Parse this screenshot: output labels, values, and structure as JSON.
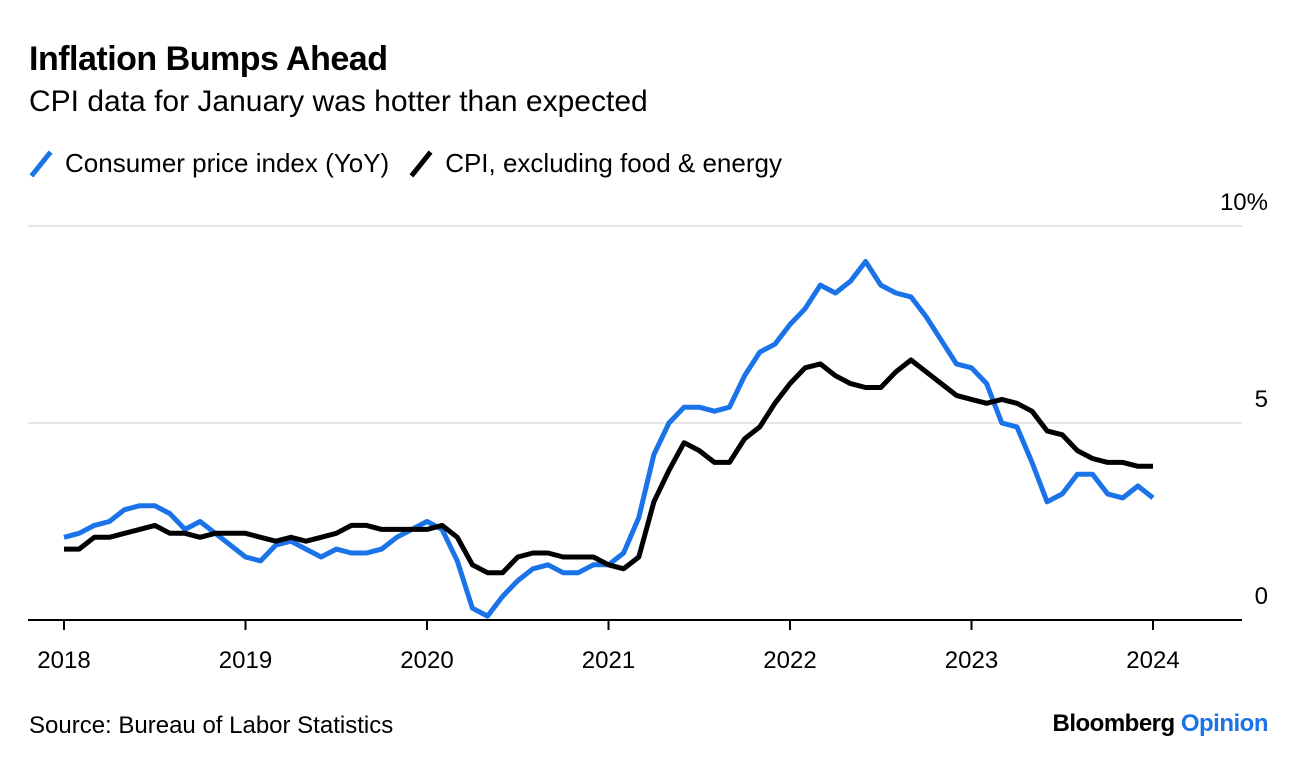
{
  "header": {
    "title": "Inflation Bumps Ahead",
    "subtitle": "CPI data for January was hotter than expected"
  },
  "legend": [
    {
      "label": "Consumer price index (YoY)",
      "color": "#1a73e8"
    },
    {
      "label": "CPI, excluding food & energy",
      "color": "#000000"
    }
  ],
  "footer": {
    "source": "Source: Bureau of Labor Statistics",
    "brand_main": "Bloomberg",
    "brand_sub": "Opinion"
  },
  "chart_data": {
    "type": "line",
    "title": "Inflation Bumps Ahead",
    "xlabel": "",
    "ylabel": "",
    "ylim": [
      0,
      10
    ],
    "yticks": [
      0,
      5,
      10
    ],
    "ytick_labels": [
      "0",
      "5",
      "10%"
    ],
    "xticks": [
      2018,
      2019,
      2020,
      2021,
      2022,
      2023,
      2024
    ],
    "xtick_labels": [
      "2018",
      "2019",
      "2020",
      "2021",
      "2022",
      "2023",
      "2024"
    ],
    "x_start": "2018-01",
    "x_step": "month",
    "grid": true,
    "series": [
      {
        "name": "Consumer price index (YoY)",
        "color": "#1a73e8",
        "values": [
          2.1,
          2.2,
          2.4,
          2.5,
          2.8,
          2.9,
          2.9,
          2.7,
          2.3,
          2.5,
          2.2,
          1.9,
          1.6,
          1.5,
          1.9,
          2.0,
          1.8,
          1.6,
          1.8,
          1.7,
          1.7,
          1.8,
          2.1,
          2.3,
          2.5,
          2.3,
          1.5,
          0.3,
          0.1,
          0.6,
          1.0,
          1.3,
          1.4,
          1.2,
          1.2,
          1.4,
          1.4,
          1.7,
          2.6,
          4.2,
          5.0,
          5.4,
          5.4,
          5.3,
          5.4,
          6.2,
          6.8,
          7.0,
          7.5,
          7.9,
          8.5,
          8.3,
          8.6,
          9.1,
          8.5,
          8.3,
          8.2,
          7.7,
          7.1,
          6.5,
          6.4,
          6.0,
          5.0,
          4.9,
          4.0,
          3.0,
          3.2,
          3.7,
          3.7,
          3.2,
          3.1,
          3.4,
          3.1
        ],
        "last_value": 3.1
      },
      {
        "name": "CPI, excluding food & energy",
        "color": "#000000",
        "values": [
          1.8,
          1.8,
          2.1,
          2.1,
          2.2,
          2.3,
          2.4,
          2.2,
          2.2,
          2.1,
          2.2,
          2.2,
          2.2,
          2.1,
          2.0,
          2.1,
          2.0,
          2.1,
          2.2,
          2.4,
          2.4,
          2.3,
          2.3,
          2.3,
          2.3,
          2.4,
          2.1,
          1.4,
          1.2,
          1.2,
          1.6,
          1.7,
          1.7,
          1.6,
          1.6,
          1.6,
          1.4,
          1.3,
          1.6,
          3.0,
          3.8,
          4.5,
          4.3,
          4.0,
          4.0,
          4.6,
          4.9,
          5.5,
          6.0,
          6.4,
          6.5,
          6.2,
          6.0,
          5.9,
          5.9,
          6.3,
          6.6,
          6.3,
          6.0,
          5.7,
          5.6,
          5.5,
          5.6,
          5.5,
          5.3,
          4.8,
          4.7,
          4.3,
          4.1,
          4.0,
          4.0,
          3.9,
          3.9
        ],
        "last_value": 3.9
      }
    ]
  }
}
